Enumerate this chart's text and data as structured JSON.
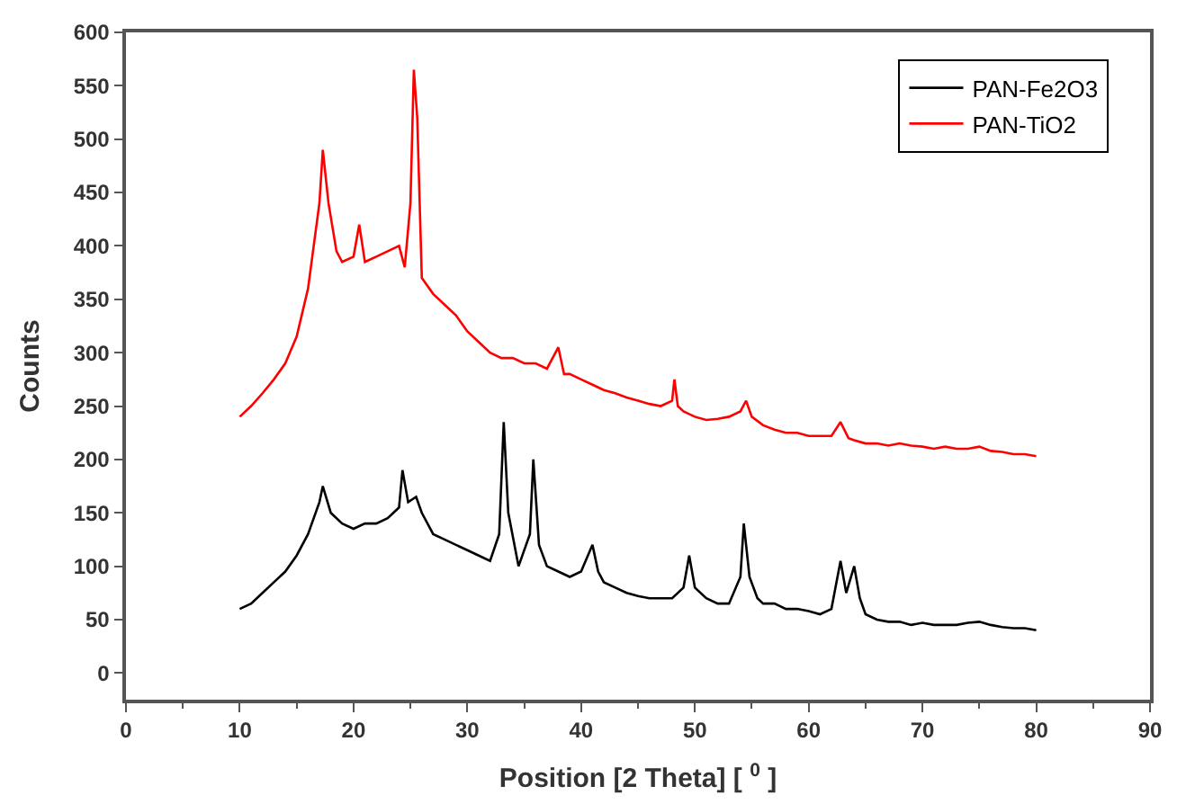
{
  "chart_data": {
    "type": "line",
    "xlabel": "Position [2 Theta] [ $^{0}$ ]",
    "ylabel": "Counts",
    "xlim": [
      0,
      90
    ],
    "xticks": [
      0,
      10,
      20,
      30,
      40,
      50,
      60,
      70,
      80,
      90
    ],
    "ylim": [
      -25,
      600
    ],
    "yticks": [
      0,
      50,
      100,
      150,
      200,
      250,
      300,
      350,
      400,
      450,
      500,
      550,
      600
    ],
    "legend": "top right",
    "marker": "none",
    "line_style": "solid",
    "series": [
      {
        "name": "PAN-Fe2O3",
        "color": "#000000",
        "x": [
          10,
          11,
          12,
          13,
          14,
          15,
          16,
          17,
          17.3,
          18,
          19,
          20,
          21,
          22,
          23,
          24,
          24.3,
          24.8,
          25.5,
          26,
          27,
          28,
          29,
          30,
          31,
          32,
          32.8,
          33.2,
          33.6,
          34.5,
          35.5,
          35.8,
          36.3,
          37,
          38,
          39,
          40,
          41,
          41.5,
          42,
          43,
          44,
          45,
          46,
          47,
          48,
          49,
          49.5,
          50,
          51,
          52,
          53,
          54,
          54.3,
          54.8,
          55.5,
          56,
          57,
          58,
          59,
          60,
          61,
          62,
          62.8,
          63.3,
          64,
          64.5,
          65,
          66,
          67,
          68,
          69,
          70,
          71,
          72,
          73,
          74,
          75,
          76,
          77,
          78,
          79,
          80
        ],
        "values": [
          60,
          65,
          75,
          85,
          95,
          110,
          130,
          160,
          175,
          150,
          140,
          135,
          140,
          140,
          145,
          155,
          190,
          160,
          165,
          150,
          130,
          125,
          120,
          115,
          110,
          105,
          130,
          235,
          150,
          100,
          130,
          200,
          120,
          100,
          95,
          90,
          95,
          120,
          95,
          85,
          80,
          75,
          72,
          70,
          70,
          70,
          80,
          110,
          80,
          70,
          65,
          65,
          90,
          140,
          90,
          70,
          65,
          65,
          60,
          60,
          58,
          55,
          60,
          105,
          75,
          100,
          70,
          55,
          50,
          48,
          48,
          45,
          47,
          45,
          45,
          45,
          47,
          48,
          45,
          43,
          42,
          42,
          40
        ]
      },
      {
        "name": "PAN-TiO2",
        "color": "#ff0000",
        "x": [
          10,
          11,
          12,
          13,
          14,
          15,
          16,
          16.5,
          17,
          17.3,
          17.8,
          18.5,
          19,
          20,
          20.5,
          21,
          22,
          23,
          24,
          24.5,
          25,
          25.3,
          25.6,
          26,
          27,
          28,
          29,
          30,
          31,
          32,
          33,
          34,
          35,
          36,
          37,
          38,
          38.5,
          39,
          40,
          41,
          42,
          43,
          44,
          45,
          46,
          47,
          48,
          48.2,
          48.5,
          49,
          50,
          51,
          52,
          53,
          54,
          54.5,
          55,
          56,
          57,
          58,
          59,
          60,
          61,
          62,
          62.8,
          63.5,
          64,
          65,
          66,
          67,
          68,
          69,
          70,
          71,
          72,
          73,
          74,
          75,
          76,
          77,
          78,
          79,
          80
        ],
        "values": [
          240,
          250,
          262,
          275,
          290,
          315,
          360,
          400,
          440,
          490,
          440,
          395,
          385,
          390,
          420,
          385,
          390,
          395,
          400,
          380,
          440,
          565,
          520,
          370,
          355,
          345,
          335,
          320,
          310,
          300,
          295,
          295,
          290,
          290,
          285,
          305,
          280,
          280,
          275,
          270,
          265,
          262,
          258,
          255,
          252,
          250,
          255,
          275,
          250,
          245,
          240,
          237,
          238,
          240,
          245,
          255,
          240,
          232,
          228,
          225,
          225,
          222,
          222,
          222,
          235,
          220,
          218,
          215,
          215,
          213,
          215,
          213,
          212,
          210,
          212,
          210,
          210,
          212,
          208,
          207,
          205,
          205,
          203
        ]
      }
    ]
  }
}
